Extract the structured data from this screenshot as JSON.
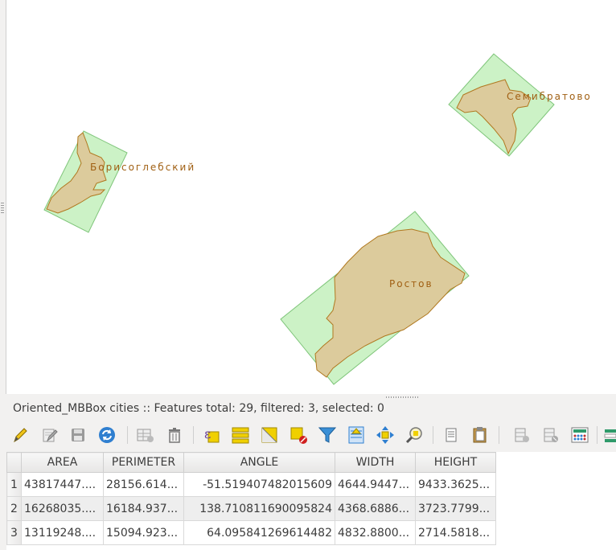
{
  "map": {
    "labels": {
      "borisoglebsky": "Борисоглебский",
      "semibratovo": "Семибратово",
      "rostov": "Ростов"
    },
    "colors": {
      "bbox_fill": "#ccf2c6",
      "bbox_stroke": "#7fc57a",
      "city_fill": "#dccb9c",
      "city_stroke": "#b0781f",
      "label": "#a05f12"
    }
  },
  "attribute_table": {
    "title": "Oriented_MBBox cities :: Features total: 29, filtered: 3, selected: 0",
    "columns": [
      "AREA",
      "PERIMETER",
      "ANGLE",
      "WIDTH",
      "HEIGHT"
    ],
    "rows": [
      {
        "num": "1",
        "area": "43817447....",
        "perimeter": "28156.614...",
        "angle": "-51.519407482015609",
        "width": "4644.9447...",
        "height": "9433.3625..."
      },
      {
        "num": "2",
        "area": "16268035....",
        "perimeter": "16184.937...",
        "angle": "138.710811690095824",
        "width": "4368.6886...",
        "height": "3723.7799..."
      },
      {
        "num": "3",
        "area": "13119248....",
        "perimeter": "15094.923...",
        "angle": "64.095841269614482",
        "width": "4832.8800...",
        "height": "2714.5818..."
      }
    ]
  },
  "toolbar": {
    "buttons": [
      "toggle-editing-icon",
      "multi-edit-icon",
      "save-edits-icon",
      "reload-icon",
      "add-feature-icon",
      "delete-feature-icon",
      "select-by-expression-icon",
      "select-all-icon",
      "invert-selection-icon",
      "deselect-all-icon",
      "filter-icon",
      "move-selection-top-icon",
      "pan-to-selected-icon",
      "zoom-to-selected-icon",
      "copy-rows-icon",
      "paste-features-icon",
      "new-field-icon",
      "delete-field-icon",
      "field-calculator-icon",
      "conditional-formatting-icon"
    ]
  }
}
